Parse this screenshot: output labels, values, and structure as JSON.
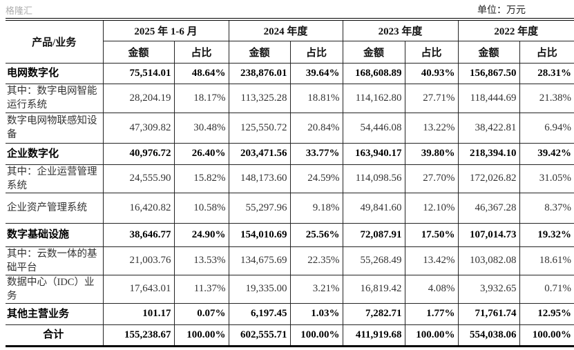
{
  "unit": "单位：万元",
  "header": {
    "product": "产品/业务",
    "periods": [
      "2025 年 1-6 月",
      "2024 年度",
      "2023 年度",
      "2022 年度"
    ],
    "amount": "金额",
    "ratio": "占比"
  },
  "rows": [
    {
      "name": "电网数字化",
      "bold": true,
      "values": [
        "75,514.01",
        "48.64%",
        "238,876.01",
        "39.64%",
        "168,608.89",
        "40.93%",
        "156,867.50",
        "28.31%"
      ]
    },
    {
      "name": "其中：数字电网智能运行系统",
      "bold": false,
      "values": [
        "28,204.19",
        "18.17%",
        "113,325.28",
        "18.81%",
        "114,162.80",
        "27.71%",
        "118,444.69",
        "21.38%"
      ]
    },
    {
      "name": "数字电网物联感知设备",
      "bold": false,
      "values": [
        "47,309.82",
        "30.48%",
        "125,550.72",
        "20.84%",
        "54,446.08",
        "13.22%",
        "38,422.81",
        "6.94%"
      ]
    },
    {
      "name": "企业数字化",
      "bold": true,
      "values": [
        "40,976.72",
        "26.40%",
        "203,471.56",
        "33.77%",
        "163,940.17",
        "39.80%",
        "218,394.10",
        "39.42%"
      ]
    },
    {
      "name": "其中：企业运营管理系统",
      "bold": false,
      "values": [
        "24,555.90",
        "15.82%",
        "148,173.60",
        "24.59%",
        "114,098.56",
        "27.70%",
        "172,026.82",
        "31.05%"
      ]
    },
    {
      "name": "企业资产管理系统",
      "bold": false,
      "values": [
        "16,420.82",
        "10.58%",
        "55,297.96",
        "9.18%",
        "49,841.60",
        "12.10%",
        "46,367.28",
        "8.37%"
      ]
    },
    {
      "name": "数字基础设施",
      "bold": true,
      "values": [
        "38,646.77",
        "24.90%",
        "154,010.69",
        "25.56%",
        "72,087.91",
        "17.50%",
        "107,014.73",
        "19.32%"
      ]
    },
    {
      "name": "其中：云数一体的基础平台",
      "bold": false,
      "values": [
        "21,003.76",
        "13.53%",
        "134,675.69",
        "22.35%",
        "55,268.49",
        "13.42%",
        "103,082.08",
        "18.61%"
      ]
    },
    {
      "name": "数据中心（IDC）业务",
      "bold": false,
      "values": [
        "17,643.01",
        "11.37%",
        "19,335.00",
        "3.21%",
        "16,819.42",
        "4.08%",
        "3,932.65",
        "0.71%"
      ]
    },
    {
      "name": "其他主营业务",
      "bold": true,
      "values": [
        "101.17",
        "0.07%",
        "6,197.45",
        "1.03%",
        "7,282.71",
        "1.77%",
        "71,761.74",
        "12.95%"
      ]
    },
    {
      "name": "合计",
      "bold": true,
      "total": true,
      "values": [
        "155,238.67",
        "100.00%",
        "602,555.71",
        "100.00%",
        "411,919.68",
        "100.00%",
        "554,038.06",
        "100.00%"
      ]
    }
  ],
  "watermark": "格隆汇"
}
